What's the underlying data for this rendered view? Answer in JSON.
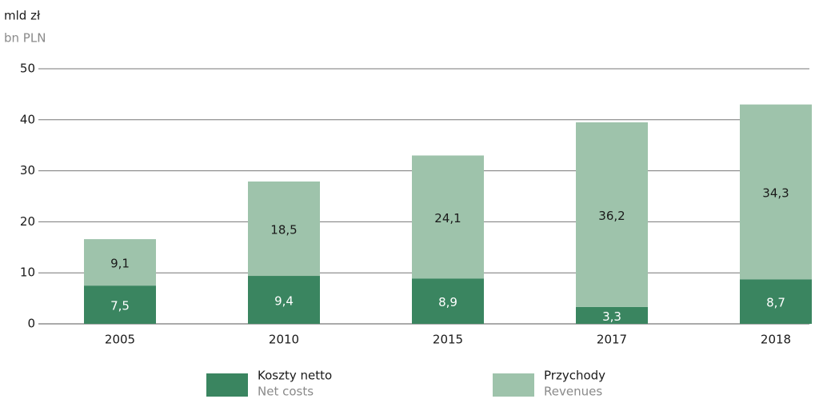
{
  "chart_data": {
    "type": "stacked_bar",
    "unit_label": "mld zł",
    "unit_label_en": "bn PLN",
    "categories": [
      "2005",
      "2010",
      "2015",
      "2017",
      "2018"
    ],
    "series": [
      {
        "name": "Koszty netto",
        "name_en": "Net costs",
        "color": "#3a8560",
        "label_color": "#ffffff",
        "values": [
          7.5,
          9.4,
          8.9,
          3.3,
          8.7
        ],
        "value_labels": [
          "7,5",
          "9,4",
          "8,9",
          "3,3",
          "8,7"
        ]
      },
      {
        "name": "Przychody",
        "name_en": "Revenues",
        "color": "#9ec3ab",
        "label_color": "#1a1a1a",
        "values": [
          9.1,
          18.5,
          24.1,
          36.2,
          34.3
        ],
        "value_labels": [
          "9,1",
          "18,5",
          "24,1",
          "36,2",
          "34,3"
        ]
      }
    ],
    "ylim": [
      0,
      50
    ],
    "yticks": [
      0,
      10,
      20,
      30,
      40,
      50
    ],
    "grid": true
  }
}
